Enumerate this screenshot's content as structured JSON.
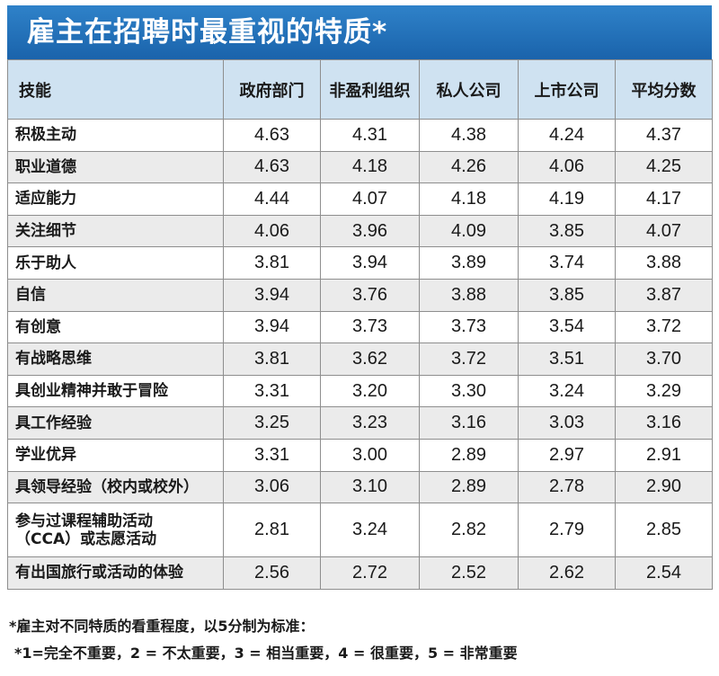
{
  "title": "雇主在招聘时最重视的特质*",
  "headers": [
    "技能",
    "政府部门",
    "非盈利组织",
    "私人公司",
    "上市公司",
    "平均分数"
  ],
  "chart_data": {
    "type": "table",
    "title": "雇主在招聘时最重视的特质*",
    "columns": [
      "技能",
      "政府部门",
      "非盈利组织",
      "私人公司",
      "上市公司",
      "平均分数"
    ],
    "rows": [
      {
        "skill": "积极主动",
        "values": [
          "4.63",
          "4.31",
          "4.38",
          "4.24",
          "4.37"
        ]
      },
      {
        "skill": "职业道德",
        "values": [
          "4.63",
          "4.18",
          "4.26",
          "4.06",
          "4.25"
        ]
      },
      {
        "skill": "适应能力",
        "values": [
          "4.44",
          "4.07",
          "4.18",
          "4.19",
          "4.17"
        ]
      },
      {
        "skill": "关注细节",
        "values": [
          "4.06",
          "3.96",
          "4.09",
          "3.85",
          "4.07"
        ]
      },
      {
        "skill": "乐于助人",
        "values": [
          "3.81",
          "3.94",
          "3.89",
          "3.74",
          "3.88"
        ]
      },
      {
        "skill": "自信",
        "values": [
          "3.94",
          "3.76",
          "3.88",
          "3.85",
          "3.87"
        ]
      },
      {
        "skill": "有创意",
        "values": [
          "3.94",
          "3.73",
          "3.73",
          "3.54",
          "3.72"
        ]
      },
      {
        "skill": "有战略思维",
        "values": [
          "3.81",
          "3.62",
          "3.72",
          "3.51",
          "3.70"
        ]
      },
      {
        "skill": "具创业精神并敢于冒险",
        "values": [
          "3.31",
          "3.20",
          "3.30",
          "3.24",
          "3.29"
        ]
      },
      {
        "skill": "具工作经验",
        "values": [
          "3.25",
          "3.23",
          "3.16",
          "3.03",
          "3.16"
        ]
      },
      {
        "skill": "学业优异",
        "values": [
          "3.31",
          "3.00",
          "2.89",
          "2.97",
          "2.91"
        ]
      },
      {
        "skill": "具领导经验（校内或校外）",
        "values": [
          "3.06",
          "3.10",
          "2.89",
          "2.78",
          "2.90"
        ]
      },
      {
        "skill": "参与过课程辅助活动（CCA）或志愿活动",
        "skill_lines": [
          "参与过课程辅助活动",
          "（CCA）或志愿活动"
        ],
        "values": [
          "2.81",
          "3.24",
          "2.82",
          "2.79",
          "2.85"
        ]
      },
      {
        "skill": "有出国旅行或活动的体验",
        "values": [
          "2.56",
          "2.72",
          "2.52",
          "2.62",
          "2.54"
        ]
      }
    ]
  },
  "notes": {
    "line1": "*雇主对不同特质的看重程度，以5分制为标准：",
    "line2": "*1=完全不重要，2 = 不太重要，3 = 相当重要，4 = 很重要，5 = 非常重要"
  }
}
